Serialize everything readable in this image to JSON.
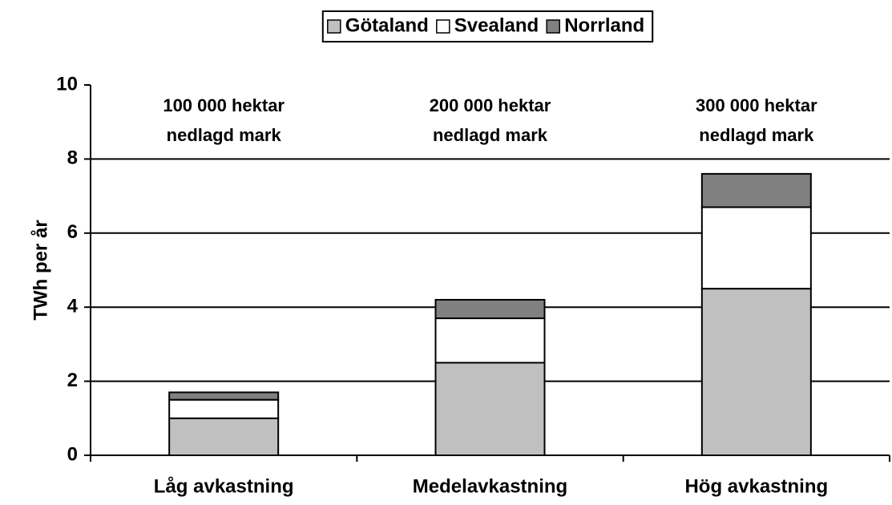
{
  "chart_data": {
    "type": "stacked_bar",
    "y_label": "TWh per år",
    "categories": [
      "Låg avkastning",
      "Medelavkastning",
      "Hög avkastning"
    ],
    "annotations": [
      [
        "100 000 hektar",
        "nedlagd mark"
      ],
      [
        "200 000 hektar",
        "nedlagd mark"
      ],
      [
        "300 000 hektar",
        "nedlagd mark"
      ]
    ],
    "series": [
      {
        "name": "Götaland",
        "color": "#c0c0c0",
        "values": [
          1.0,
          2.5,
          4.5
        ]
      },
      {
        "name": "Svealand",
        "color": "#ffffff",
        "values": [
          0.5,
          1.2,
          2.2
        ]
      },
      {
        "name": "Norrland",
        "color": "#808080",
        "values": [
          0.2,
          0.5,
          0.9
        ]
      }
    ],
    "ylim": [
      0,
      10
    ],
    "yticks": [
      0,
      2,
      4,
      6,
      8,
      10
    ],
    "grid": true,
    "legend": "top"
  }
}
